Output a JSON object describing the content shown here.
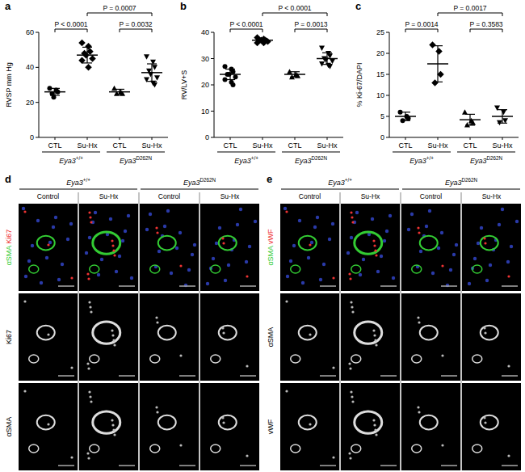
{
  "chart_data": [
    {
      "type": "dot",
      "title": "a",
      "y_label": "RVSP mm Hg",
      "categories": [
        "CTL",
        "Su-Hx",
        "CTL",
        "Su-Hx"
      ],
      "group_labels": [
        {
          "base": "Eya3",
          "sup": "+/+"
        },
        {
          "base": "Eya3",
          "sup": "D262N"
        }
      ],
      "points": [
        [
          28,
          27,
          26,
          25,
          23
        ],
        [
          54,
          52,
          49,
          48,
          47,
          45,
          44,
          40
        ],
        [
          28,
          26,
          25,
          25
        ],
        [
          46,
          43,
          40,
          38,
          36,
          34,
          33,
          31,
          30
        ]
      ],
      "mean": [
        26,
        47,
        26,
        37
      ],
      "sd": [
        2,
        4.5,
        1.5,
        5
      ],
      "markers": [
        "circle",
        "square",
        "triangle",
        "triangle-down"
      ],
      "color": "#000000",
      "ylim": [
        0,
        60
      ],
      "yticks": [
        0,
        20,
        40,
        60
      ],
      "annotations": [
        "P < 0.0001",
        "P = 0.0032",
        "P = 0.0007"
      ]
    },
    {
      "type": "dot",
      "title": "b",
      "y_label": "RV/LV+S",
      "categories": [
        "CTL",
        "Su-Hx",
        "CTL",
        "Su-Hx"
      ],
      "group_labels": [
        {
          "base": "Eya3",
          "sup": "+/+"
        },
        {
          "base": "Eya3",
          "sup": "D262N"
        }
      ],
      "points": [
        [
          27,
          26,
          25,
          24,
          24,
          23,
          22,
          21,
          20
        ],
        [
          38,
          37.5,
          37,
          37,
          37,
          36.5,
          36,
          36
        ],
        [
          25,
          24,
          23.5,
          23
        ],
        [
          34,
          32,
          31,
          30,
          29.5,
          29,
          28,
          27.5,
          27
        ]
      ],
      "mean": [
        24,
        37,
        24,
        30
      ],
      "sd": [
        2,
        0.7,
        1,
        2.2
      ],
      "markers": [
        "circle",
        "square",
        "triangle",
        "triangle-down"
      ],
      "color": "#000000",
      "ylim": [
        0,
        40
      ],
      "yticks": [
        0,
        10,
        20,
        30,
        40
      ],
      "annotations": [
        "P < 0.0001",
        "P = 0.0013",
        "P < 0.0001"
      ]
    },
    {
      "type": "dot",
      "title": "c",
      "y_label": "% Ki-67/DAPI",
      "categories": [
        "CTL",
        "Su-Hx",
        "CTL",
        "Su-Hx"
      ],
      "group_labels": [
        {
          "base": "Eya3",
          "sup": "+/+"
        },
        {
          "base": "Eya3",
          "sup": "D262N"
        }
      ],
      "points": [
        [
          6,
          5,
          4.5,
          4
        ],
        [
          22,
          20.5,
          15,
          13
        ],
        [
          6,
          4,
          3.5,
          3
        ],
        [
          7,
          6,
          4,
          3.5
        ]
      ],
      "mean": [
        5,
        17.5,
        4.2,
        5
      ],
      "sd": [
        1,
        4.3,
        1.3,
        1.6
      ],
      "markers": [
        "circle",
        "square",
        "triangle",
        "triangle-down"
      ],
      "color": "#000000",
      "ylim": [
        0,
        25
      ],
      "yticks": [
        0,
        5,
        10,
        15,
        20,
        25
      ],
      "annotations": [
        "P = 0.0014",
        "P = 0.3583",
        "P = 0.0017"
      ]
    }
  ],
  "panels": [
    {
      "letter": "d",
      "genotypes": [
        {
          "base": "Eya3",
          "sup": "+/+"
        },
        {
          "base": "Eya3",
          "sup": "D262N"
        }
      ],
      "conditions": [
        "Control",
        "Su-Hx",
        "Control",
        "Su-Hx"
      ],
      "rows": [
        [
          {
            "text": "αSMA",
            "color": "#33cc33"
          },
          {
            "text": "Ki67",
            "color": "#ee3333"
          }
        ],
        [
          {
            "text": "Ki67",
            "color": "#33cc33"
          }
        ],
        [
          {
            "text": "αSMA",
            "color": "#33cc33"
          }
        ]
      ]
    },
    {
      "letter": "e",
      "genotypes": [
        {
          "base": "Eya3",
          "sup": "+/+"
        },
        {
          "base": "Eya3",
          "sup": "D262N"
        }
      ],
      "conditions": [
        "Control",
        "Su-Hx",
        "Control",
        "Su-Hx"
      ],
      "rows": [
        [
          {
            "text": "αSMA",
            "color": "#33cc33"
          },
          {
            "text": "vWF",
            "color": "#ee3333"
          }
        ],
        [
          {
            "text": "αSMA",
            "color": "#33cc33"
          }
        ],
        [
          {
            "text": "vWF",
            "color": "#ee3333"
          }
        ]
      ]
    }
  ]
}
